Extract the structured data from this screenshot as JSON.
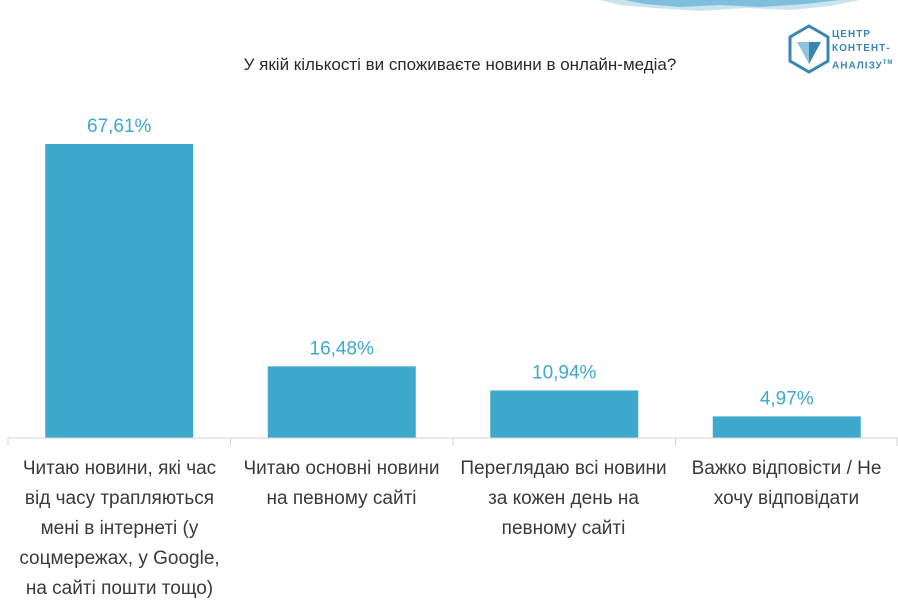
{
  "chart_data": {
    "type": "bar",
    "title": "У якій кількості ви споживаєте новини в онлайн-медіа?",
    "categories": [
      "Читаю новини, які час від часу трапляються мені в інтернеті (у соцмережах, у Google, на сайті пошти тощо)",
      "Читаю основні новини на певному сайті",
      "Переглядаю всі новини за кожен день на певному сайті",
      "Важко відповісти / Не хочу відповідати"
    ],
    "values": [
      67.61,
      16.48,
      10.94,
      4.97
    ],
    "value_labels": [
      "67,61%",
      "16,48%",
      "10,94%",
      "4,97%"
    ],
    "ylim": [
      0,
      67.61
    ],
    "grid": false,
    "bar_color": "#3ea9cc",
    "label_color": "#3ea9cc"
  },
  "logo": {
    "lines": [
      "ЦЕНТР",
      "КОНТЕНТ-",
      "АНАЛІЗУ"
    ],
    "mark": "ТМ",
    "color": "#3a86b3"
  }
}
